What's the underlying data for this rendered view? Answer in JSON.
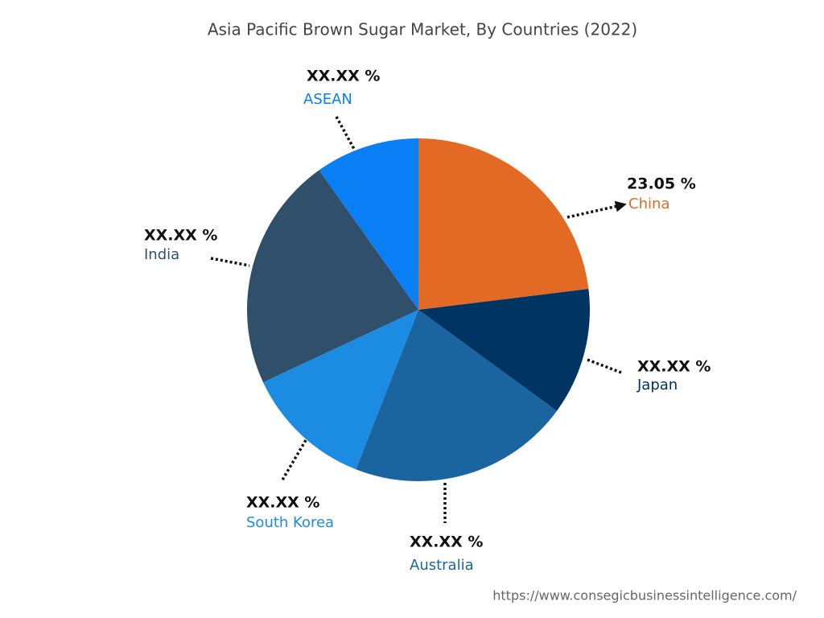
{
  "chart_data": {
    "type": "pie",
    "title": "Asia Pacific Brown Sugar Market, By Countries (2022)",
    "categories": [
      "China",
      "Japan",
      "Australia",
      "South Korea",
      "India",
      "ASEAN"
    ],
    "values": [
      23.05,
      12,
      20.9,
      12.1,
      22.1,
      9.85
    ],
    "value_labels": [
      "23.05 %",
      "XX.XX %",
      "XX.XX %",
      "XX.XX %",
      "XX.XX %",
      "XX.XX %"
    ],
    "colors": [
      "#e36a25",
      "#003462",
      "#1a65a0",
      "#1c8ce3",
      "#2f4f6a",
      "#0a7ff5"
    ],
    "source": "https://www.consegicbusinessintelligence.com/"
  }
}
